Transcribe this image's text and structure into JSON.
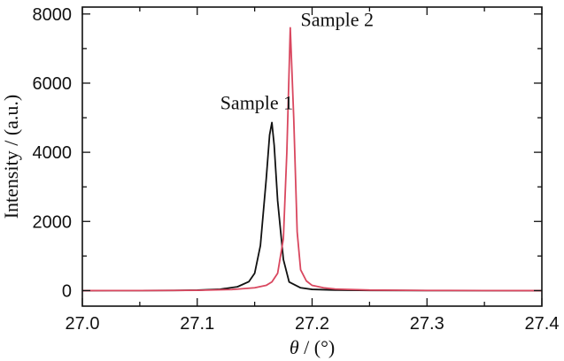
{
  "chart_data": {
    "type": "line",
    "title": "",
    "xlabel_symbol": "θ",
    "xlabel_rest": " / (°)",
    "ylabel": "Intensity / (a.u.)",
    "xlim": [
      27.0,
      27.4
    ],
    "ylim": [
      -450,
      8200
    ],
    "xticks": [
      27.0,
      27.1,
      27.2,
      27.3,
      27.4
    ],
    "xtick_labels": [
      "27.0",
      "27.1",
      "27.2",
      "27.3",
      "27.4"
    ],
    "yticks": [
      0,
      2000,
      4000,
      6000,
      8000
    ],
    "ytick_labels": [
      "0",
      "2000",
      "4000",
      "6000",
      "8000"
    ],
    "x_minor_step": 0.05,
    "y_minor_step": 1000,
    "grid": false,
    "legend": "none",
    "series": [
      {
        "name": "Sample 1",
        "color": "#111111",
        "points": [
          [
            27.0,
            0
          ],
          [
            27.05,
            2
          ],
          [
            27.08,
            5
          ],
          [
            27.1,
            12
          ],
          [
            27.12,
            40
          ],
          [
            27.135,
            110
          ],
          [
            27.145,
            260
          ],
          [
            27.15,
            500
          ],
          [
            27.155,
            1300
          ],
          [
            27.16,
            3200
          ],
          [
            27.163,
            4500
          ],
          [
            27.165,
            4860
          ],
          [
            27.167,
            4200
          ],
          [
            27.17,
            2600
          ],
          [
            27.175,
            900
          ],
          [
            27.18,
            250
          ],
          [
            27.19,
            80
          ],
          [
            27.2,
            35
          ],
          [
            27.22,
            15
          ],
          [
            27.25,
            6
          ],
          [
            27.3,
            2
          ],
          [
            27.4,
            0
          ]
        ]
      },
      {
        "name": "Sample 2",
        "color": "#d9475f",
        "points": [
          [
            27.0,
            0
          ],
          [
            27.05,
            2
          ],
          [
            27.1,
            8
          ],
          [
            27.13,
            30
          ],
          [
            27.15,
            80
          ],
          [
            27.16,
            150
          ],
          [
            27.165,
            250
          ],
          [
            27.17,
            500
          ],
          [
            27.175,
            1500
          ],
          [
            27.178,
            4000
          ],
          [
            27.181,
            7600
          ],
          [
            27.184,
            5000
          ],
          [
            27.187,
            1700
          ],
          [
            27.19,
            600
          ],
          [
            27.195,
            280
          ],
          [
            27.2,
            150
          ],
          [
            27.21,
            80
          ],
          [
            27.22,
            45
          ],
          [
            27.25,
            15
          ],
          [
            27.3,
            5
          ],
          [
            27.35,
            2
          ],
          [
            27.4,
            0
          ]
        ]
      }
    ],
    "annotations": [
      {
        "text": "Sample 1",
        "x": 27.12,
        "y": 5250
      },
      {
        "text": "Sample 2",
        "x": 27.19,
        "y": 7650
      }
    ]
  }
}
